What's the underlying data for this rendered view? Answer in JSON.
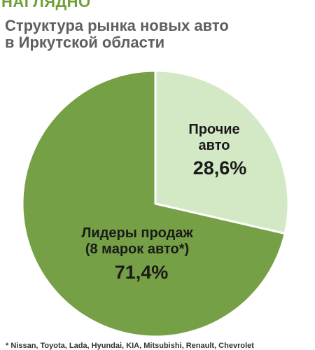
{
  "header": {
    "kicker": "НАГЛЯДНО",
    "title_line1": "Структура рынка новых авто",
    "title_line2": "в Иркутской области"
  },
  "colors": {
    "kicker": "#6e9f3a",
    "leaders_slice": "#76a045",
    "others_slice": "#d3e8c4",
    "slice_border": "#ffffff"
  },
  "chart_data": {
    "type": "pie",
    "title": "Структура рынка новых авто в Иркутской области",
    "slices": [
      {
        "label_line1": "Прочие",
        "label_line2": "авто",
        "value": 28.6,
        "value_label": "28,6%",
        "color": "#d3e8c4"
      },
      {
        "label_line1": "Лидеры продаж",
        "label_line2": "(8 марок авто*)",
        "value": 71.4,
        "value_label": "71,4%",
        "color": "#76a045"
      }
    ]
  },
  "footnote": "* Nissan, Toyota, Lada, Hyundai, KIA, Mitsubishi, Renault, Chevrolet"
}
